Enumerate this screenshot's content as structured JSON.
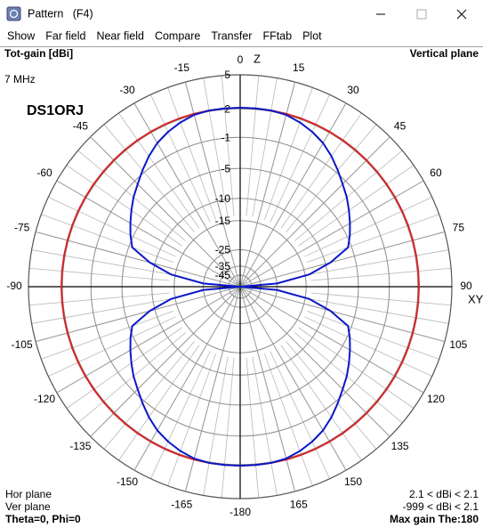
{
  "window": {
    "title": "Pattern   (F4)"
  },
  "menu": [
    {
      "label": "Show",
      "enabled": true
    },
    {
      "label": "Far field",
      "enabled": true
    },
    {
      "label": "Near field",
      "enabled": false
    },
    {
      "label": "Compare",
      "enabled": true
    },
    {
      "label": "Transfer",
      "enabled": true
    },
    {
      "label": "FFtab",
      "enabled": true
    },
    {
      "label": "Plot",
      "enabled": true
    }
  ],
  "chart_data": {
    "type": "polar",
    "title": "Tot-gain [dBi]",
    "frequency": "7 MHz",
    "callsign": "DS1ORJ",
    "plane": "Vertical plane",
    "axis_labels": {
      "top": "Z",
      "right": "XY"
    },
    "rmax": 5,
    "rticks": [
      5,
      2,
      -1,
      -5,
      -10,
      -15,
      -25,
      -35,
      -45
    ],
    "xticks": [
      -180,
      -165,
      -150,
      -135,
      -120,
      -105,
      -90,
      -75,
      -60,
      -45,
      -30,
      -15,
      0,
      15,
      30,
      45,
      60,
      75,
      90,
      105,
      120,
      135,
      150,
      165
    ],
    "x": [
      -180,
      -175,
      -170,
      -165,
      -160,
      -155,
      -150,
      -145,
      -140,
      -135,
      -130,
      -125,
      -120,
      -115,
      -110,
      -105,
      -100,
      -95,
      -90,
      -85,
      -80,
      -75,
      -70,
      -65,
      -60,
      -55,
      -50,
      -45,
      -40,
      -35,
      -30,
      -25,
      -20,
      -15,
      -10,
      -5,
      0,
      5,
      10,
      15,
      20,
      25,
      30,
      35,
      40,
      45,
      50,
      55,
      60,
      65,
      70,
      75,
      80,
      85,
      90,
      95,
      100,
      105,
      110,
      115,
      120,
      125,
      130,
      135,
      140,
      145,
      150,
      155,
      160,
      165,
      170,
      175,
      180
    ],
    "series": [
      {
        "name": "Hor plane",
        "color": "#d42626",
        "range": "2.1 < dBi < 2.1",
        "values": [
          2.1,
          2.1,
          2.1,
          2.1,
          2.1,
          2.1,
          2.1,
          2.1,
          2.1,
          2.1,
          2.1,
          2.1,
          2.1,
          2.1,
          2.1,
          2.1,
          2.1,
          2.1,
          2.1,
          2.1,
          2.1,
          2.1,
          2.1,
          2.1,
          2.1,
          2.1,
          2.1,
          2.1,
          2.1,
          2.1,
          2.1,
          2.1,
          2.1,
          2.1,
          2.1,
          2.1,
          2.1,
          2.1,
          2.1,
          2.1,
          2.1,
          2.1,
          2.1,
          2.1,
          2.1,
          2.1,
          2.1,
          2.1,
          2.1,
          2.1,
          2.1,
          2.1,
          2.1,
          2.1,
          2.1,
          2.1,
          2.1,
          2.1,
          2.1,
          2.1,
          2.1,
          2.1,
          2.1,
          2.1,
          2.1,
          2.1,
          2.1,
          2.1,
          2.1,
          2.1,
          2.1,
          2.1,
          2.1
        ]
      },
      {
        "name": "Ver plane",
        "color": "#0b18c8",
        "range": "-999 < dBi < 2.1",
        "values": [
          2.1,
          2.1,
          2.1,
          2.0,
          1.7,
          1.3,
          0.8,
          0.1,
          -0.7,
          -1.5,
          -2.2,
          -3.0,
          -3.8,
          -4.6,
          -5.5,
          -9,
          -14,
          -25,
          -999,
          -25,
          -14,
          -9,
          -5.5,
          -4.6,
          -3.8,
          -3.0,
          -2.2,
          -1.5,
          -0.7,
          0.1,
          0.8,
          1.3,
          1.7,
          2.0,
          2.1,
          2.1,
          2.1,
          2.1,
          2.1,
          2.0,
          1.7,
          1.3,
          0.8,
          0.1,
          -0.7,
          -1.5,
          -2.2,
          -3.0,
          -3.8,
          -4.6,
          -5.5,
          -9,
          -14,
          -25,
          -999,
          -25,
          -14,
          -9,
          -5.5,
          -4.6,
          -3.8,
          -3.0,
          -2.2,
          -1.5,
          -0.7,
          0.1,
          0.8,
          1.3,
          1.7,
          2.0,
          2.1,
          2.1,
          2.1
        ]
      }
    ],
    "footer_left": "Theta=0, Phi=0",
    "footer_right": "Max gain The:180"
  }
}
